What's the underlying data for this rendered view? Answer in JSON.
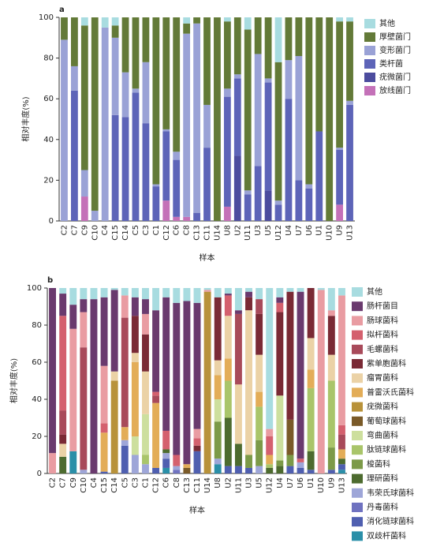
{
  "chart_data": [
    {
      "type": "bar",
      "stacked": true,
      "panel_label": "a",
      "x_label": "样本",
      "y_label": "相对丰度(%)",
      "categories": [
        "C2",
        "C7",
        "C9",
        "C10",
        "C4",
        "C15",
        "C14",
        "C5",
        "C3",
        "C1",
        "C12",
        "C6",
        "C8",
        "C13",
        "C11",
        "U14",
        "U8",
        "U2",
        "U11",
        "U3",
        "U5",
        "U12",
        "U4",
        "U7",
        "U6",
        "U1",
        "U10",
        "U9",
        "U13"
      ],
      "ylim": [
        0,
        100
      ],
      "yticks": [
        0,
        20,
        40,
        60,
        80,
        100
      ],
      "series": [
        {
          "name": "放线菌门",
          "color": "#c471b8",
          "values": [
            0,
            0,
            12,
            0,
            0,
            0,
            0,
            0,
            0,
            0,
            10,
            2,
            2,
            0,
            0,
            0,
            7,
            0,
            0,
            0,
            0,
            0,
            0,
            0,
            0,
            0,
            0,
            8,
            0
          ]
        },
        {
          "name": "疣微菌门",
          "color": "#4c4c9e",
          "values": [
            0,
            0,
            0,
            0,
            0,
            0,
            0,
            0,
            0,
            0,
            0,
            0,
            0,
            0,
            0,
            0,
            0,
            32,
            0,
            0,
            15,
            0,
            0,
            0,
            0,
            0,
            0,
            0,
            0
          ]
        },
        {
          "name": "类杆菌",
          "color": "#5d64b8",
          "values": [
            0,
            64,
            0,
            0,
            0,
            52,
            51,
            63,
            48,
            17,
            34,
            28,
            0,
            4,
            36,
            0,
            54,
            38,
            13,
            27,
            53,
            8,
            60,
            20,
            16,
            44,
            0,
            27,
            57
          ]
        },
        {
          "name": "变形菌门",
          "color": "#9aa2d6",
          "values": [
            89,
            12,
            13,
            5,
            95,
            38,
            22,
            2,
            30,
            1,
            1,
            4,
            90,
            93,
            21,
            0,
            4,
            2,
            2,
            55,
            2,
            2,
            19,
            61,
            2,
            0,
            0,
            1,
            2
          ]
        },
        {
          "name": "厚壁菌门",
          "color": "#637a38",
          "values": [
            11,
            24,
            71,
            95,
            0,
            6,
            27,
            35,
            22,
            82,
            55,
            66,
            5,
            3,
            43,
            100,
            33,
            28,
            79,
            18,
            30,
            68,
            21,
            19,
            82,
            56,
            100,
            62,
            39
          ]
        },
        {
          "name": "其他",
          "color": "#a8dce0",
          "values": [
            0,
            0,
            4,
            0,
            5,
            4,
            0,
            0,
            0,
            0,
            0,
            0,
            3,
            0,
            0,
            0,
            2,
            0,
            6,
            0,
            0,
            22,
            0,
            0,
            0,
            0,
            0,
            2,
            2
          ]
        }
      ]
    },
    {
      "type": "bar",
      "stacked": true,
      "panel_label": "b",
      "x_label": "样本",
      "y_label": "相对丰度(%)",
      "categories": [
        "C2",
        "C7",
        "C9",
        "C10",
        "C4",
        "C15",
        "C14",
        "C5",
        "C3",
        "C1",
        "C12",
        "C6",
        "C8",
        "C13",
        "C11",
        "U14",
        "U8",
        "U2",
        "U11",
        "U3",
        "U5",
        "U12",
        "U4",
        "U7",
        "U6",
        "U1",
        "U10",
        "U9",
        "U13"
      ],
      "ylim": [
        0,
        100
      ],
      "yticks": [
        0,
        20,
        40,
        60,
        80,
        100
      ],
      "series": [
        {
          "name": "双歧杆菌科",
          "color": "#2a8fa8",
          "values": [
            0,
            0,
            12,
            0,
            0,
            0,
            0,
            0,
            0,
            0,
            0,
            3,
            0,
            0,
            0,
            0,
            5,
            0,
            0,
            0,
            0,
            0,
            0,
            0,
            0,
            0,
            0,
            0,
            2
          ]
        },
        {
          "name": "消化链球菌科",
          "color": "#4f5fb0",
          "values": [
            0,
            0,
            0,
            0,
            0,
            1,
            0,
            15,
            0,
            0,
            3,
            5,
            0,
            0,
            12,
            0,
            0,
            4,
            4,
            3,
            0,
            0,
            0,
            4,
            3,
            2,
            0,
            2,
            3
          ]
        },
        {
          "name": "丹毒菌科",
          "color": "#6f72c0",
          "values": [
            0,
            0,
            0,
            0,
            0,
            0,
            0,
            0,
            0,
            0,
            0,
            0,
            2,
            0,
            0,
            0,
            0,
            0,
            0,
            0,
            0,
            0,
            0,
            0,
            0,
            0,
            0,
            0,
            0
          ]
        },
        {
          "name": "韦荣氏球菌科",
          "color": "#9ea6d8",
          "values": [
            0,
            0,
            0,
            2,
            0,
            0,
            0,
            3,
            10,
            5,
            0,
            3,
            2,
            0,
            0,
            0,
            3,
            0,
            0,
            0,
            4,
            0,
            0,
            0,
            3,
            0,
            0,
            0,
            0
          ]
        },
        {
          "name": "理研菌科",
          "color": "#4d6b2f",
          "values": [
            0,
            9,
            0,
            0,
            0,
            0,
            0,
            0,
            0,
            0,
            0,
            2,
            0,
            0,
            0,
            0,
            0,
            26,
            12,
            0,
            0,
            3,
            4,
            0,
            0,
            10,
            0,
            0,
            3
          ]
        },
        {
          "name": "梭菌科",
          "color": "#7c9a48",
          "values": [
            0,
            0,
            0,
            0,
            0,
            0,
            0,
            0,
            0,
            0,
            0,
            0,
            0,
            0,
            0,
            0,
            20,
            0,
            0,
            7,
            14,
            0,
            3,
            6,
            0,
            0,
            0,
            12,
            0
          ]
        },
        {
          "name": "肽链球菌科",
          "color": "#a9c56a",
          "values": [
            0,
            0,
            0,
            0,
            0,
            0,
            0,
            0,
            0,
            5,
            0,
            0,
            0,
            0,
            0,
            0,
            0,
            20,
            0,
            0,
            18,
            2,
            0,
            0,
            0,
            34,
            0,
            36,
            0
          ]
        },
        {
          "name": "弯曲菌科",
          "color": "#cddf9e",
          "values": [
            0,
            0,
            0,
            0,
            0,
            0,
            0,
            0,
            10,
            22,
            0,
            0,
            0,
            0,
            0,
            0,
            12,
            0,
            0,
            0,
            0,
            0,
            35,
            0,
            0,
            0,
            0,
            0,
            0
          ]
        },
        {
          "name": "葡萄球菌科",
          "color": "#7a5a28",
          "values": [
            0,
            0,
            0,
            0,
            0,
            0,
            0,
            0,
            0,
            0,
            0,
            0,
            0,
            3,
            0,
            0,
            0,
            0,
            0,
            0,
            0,
            0,
            0,
            19,
            0,
            0,
            0,
            0,
            0
          ]
        },
        {
          "name": "疣微菌科",
          "color": "#b8923a",
          "values": [
            0,
            0,
            0,
            0,
            0,
            0,
            50,
            0,
            0,
            0,
            0,
            0,
            0,
            0,
            0,
            98,
            0,
            0,
            0,
            0,
            0,
            0,
            0,
            0,
            0,
            0,
            0,
            0,
            0
          ]
        },
        {
          "name": "普雷沃氏菌科",
          "color": "#e3ad58",
          "values": [
            0,
            0,
            0,
            0,
            0,
            21,
            0,
            7,
            40,
            0,
            35,
            0,
            0,
            2,
            0,
            0,
            13,
            12,
            0,
            0,
            8,
            5,
            0,
            0,
            0,
            10,
            0,
            0,
            5
          ]
        },
        {
          "name": "瘤胃菌科",
          "color": "#ebd2a6",
          "values": [
            0,
            7,
            0,
            0,
            0,
            0,
            5,
            0,
            5,
            23,
            0,
            0,
            0,
            0,
            0,
            0,
            8,
            23,
            32,
            78,
            20,
            0,
            0,
            0,
            0,
            17,
            0,
            14,
            0
          ]
        },
        {
          "name": "紫单胞菌科",
          "color": "#7a2a35",
          "values": [
            0,
            5,
            0,
            0,
            0,
            0,
            0,
            0,
            20,
            20,
            0,
            0,
            0,
            0,
            3,
            0,
            34,
            0,
            0,
            7,
            22,
            0,
            45,
            69,
            0,
            27,
            0,
            21,
            0
          ]
        },
        {
          "name": "毛螺菌科",
          "color": "#a84a5a",
          "values": [
            0,
            13,
            0,
            66,
            0,
            0,
            0,
            59,
            0,
            0,
            4,
            0,
            0,
            0,
            0,
            0,
            0,
            0,
            38,
            0,
            8,
            0,
            0,
            0,
            0,
            0,
            0,
            0,
            8
          ]
        },
        {
          "name": "拟杆菌科",
          "color": "#d4606e",
          "values": [
            0,
            51,
            0,
            0,
            0,
            5,
            0,
            0,
            0,
            0,
            2,
            10,
            6,
            0,
            4,
            0,
            0,
            11,
            0,
            0,
            0,
            10,
            5,
            0,
            2,
            0,
            0,
            0,
            5
          ]
        },
        {
          "name": "肠球菌科",
          "color": "#e99ca2",
          "values": [
            11,
            0,
            66,
            19,
            0,
            31,
            0,
            12,
            0,
            11,
            0,
            0,
            0,
            0,
            5,
            1,
            0,
            0,
            0,
            0,
            0,
            4,
            0,
            0,
            0,
            0,
            99,
            3,
            70
          ]
        },
        {
          "name": "肠杆菌目",
          "color": "#6a3a6e",
          "values": [
            89,
            12,
            13,
            7,
            94,
            37,
            44,
            0,
            10,
            8,
            44,
            72,
            82,
            88,
            68,
            0,
            0,
            1,
            2,
            3,
            0,
            0,
            3,
            0,
            90,
            0,
            0,
            0,
            0
          ]
        },
        {
          "name": "其他",
          "color": "#a8dce0",
          "values": [
            0,
            3,
            9,
            6,
            6,
            5,
            1,
            4,
            5,
            6,
            12,
            5,
            8,
            7,
            8,
            1,
            5,
            3,
            12,
            2,
            6,
            76,
            5,
            2,
            2,
            0,
            1,
            12,
            4
          ]
        }
      ]
    }
  ]
}
